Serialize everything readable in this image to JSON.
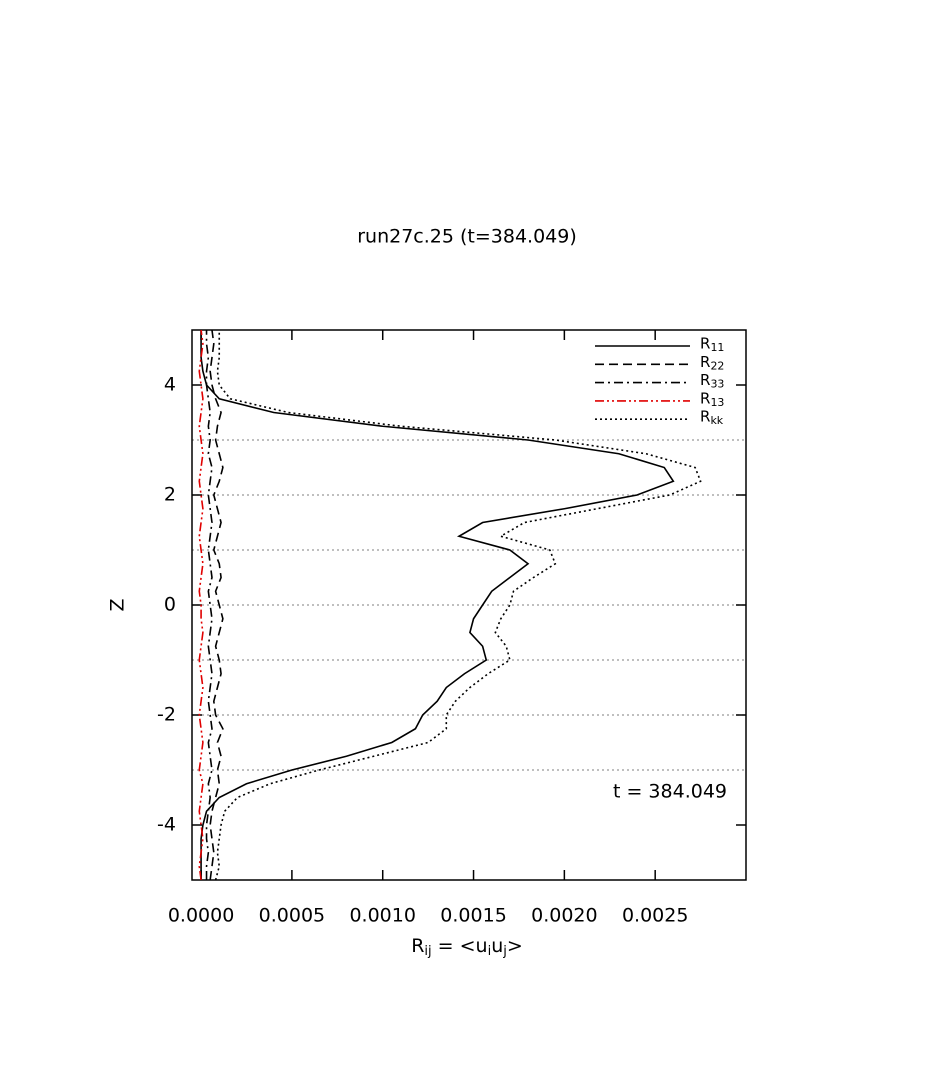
{
  "chart_data": {
    "type": "profile",
    "title": "run27c.25 (t=384.049)",
    "xlabel": [
      {
        "text": "R"
      },
      {
        "sub": "ij"
      },
      {
        "text": " = <u"
      },
      {
        "sub": "i"
      },
      {
        "text": "u"
      },
      {
        "sub": "j"
      },
      {
        "text": ">"
      }
    ],
    "ylabel": "Z",
    "annotation": "t = 384.049",
    "xlim": [
      -5e-05,
      0.003
    ],
    "ylim": [
      -5,
      5
    ],
    "xticks": [
      {
        "value": 0,
        "label": "0.0000"
      },
      {
        "value": 0.0005,
        "label": "0.0005"
      },
      {
        "value": 0.001,
        "label": "0.0010"
      },
      {
        "value": 0.0015,
        "label": "0.0015"
      },
      {
        "value": 0.002,
        "label": "0.0020"
      },
      {
        "value": 0.0025,
        "label": "0.0025"
      }
    ],
    "yticks": [
      -4,
      -2,
      0,
      2,
      4
    ],
    "reference_lines": [
      -3,
      -2,
      -1,
      0,
      1,
      2,
      3
    ],
    "legend": "upper right",
    "y": [
      -5,
      -4.75,
      -4.5,
      -4.25,
      -4,
      -3.75,
      -3.5,
      -3.25,
      -3,
      -2.75,
      -2.5,
      -2.25,
      -2,
      -1.75,
      -1.5,
      -1.25,
      -1,
      -0.75,
      -0.5,
      -0.25,
      0,
      0.25,
      0.5,
      0.75,
      1,
      1.25,
      1.5,
      1.75,
      2,
      2.25,
      2.5,
      2.75,
      3,
      3.25,
      3.5,
      3.75,
      4,
      4.25,
      4.5,
      4.75,
      5
    ],
    "series": [
      {
        "name": "R11",
        "color": "#000000",
        "dash": "solid",
        "values": [
          0,
          0,
          0,
          0,
          1e-05,
          3e-05,
          0.0001,
          0.00025,
          0.0005,
          0.0008,
          0.00105,
          0.00118,
          0.00122,
          0.0013,
          0.00135,
          0.00145,
          0.00157,
          0.00155,
          0.00148,
          0.0015,
          0.00155,
          0.0016,
          0.0017,
          0.0018,
          0.0017,
          0.00142,
          0.00155,
          0.002,
          0.0024,
          0.0026,
          0.00255,
          0.0023,
          0.0018,
          0.001,
          0.0004,
          0.0001,
          3e-05,
          1e-05,
          0,
          0,
          0
        ]
      },
      {
        "name": "R22",
        "color": "#000000",
        "dash": "dashed",
        "values": [
          5e-05,
          6e-05,
          7e-05,
          6e-05,
          5e-05,
          6e-05,
          8e-05,
          0.0001,
          9e-05,
          0.00011,
          9e-05,
          0.00012,
          8e-05,
          7e-05,
          9e-05,
          0.00011,
          0.0001,
          8e-05,
          0.0001,
          0.00012,
          0.0001,
          8e-05,
          0.00011,
          0.0001,
          7e-05,
          9e-05,
          0.00011,
          9e-05,
          7e-05,
          0.0001,
          0.00012,
          0.0001,
          8e-05,
          9e-05,
          0.00011,
          8e-05,
          6e-05,
          5e-05,
          6e-05,
          7e-05,
          6e-05
        ]
      },
      {
        "name": "R33",
        "color": "#000000",
        "dash": "dashdot",
        "values": [
          3e-05,
          3e-05,
          4e-05,
          3e-05,
          3e-05,
          4e-05,
          5e-05,
          4e-05,
          6e-05,
          5e-05,
          4e-05,
          6e-05,
          5e-05,
          4e-05,
          5e-05,
          6e-05,
          5e-05,
          4e-05,
          5e-05,
          6e-05,
          5e-05,
          4e-05,
          6e-05,
          5e-05,
          4e-05,
          5e-05,
          6e-05,
          5e-05,
          4e-05,
          5e-05,
          6e-05,
          4e-05,
          5e-05,
          4e-05,
          5e-05,
          4e-05,
          3e-05,
          3e-05,
          4e-05,
          3e-05,
          3e-05
        ]
      },
      {
        "name": "R13",
        "color": "#e00000",
        "dash": "dashdotdot",
        "values": [
          0,
          -1e-05,
          0,
          1e-05,
          0,
          -1e-05,
          0,
          1e-05,
          -1e-05,
          0,
          1e-05,
          0,
          -1e-05,
          0,
          1e-05,
          0,
          -1e-05,
          0,
          1e-05,
          0,
          0,
          -1e-05,
          0,
          1e-05,
          0,
          -1e-05,
          0,
          1e-05,
          0,
          -1e-05,
          0,
          1e-05,
          0,
          -1e-05,
          0,
          1e-05,
          0,
          -1e-05,
          0,
          1e-05,
          0
        ]
      },
      {
        "name": "Rkk",
        "color": "#000000",
        "dash": "dotted",
        "values": [
          8e-05,
          0.0001,
          9e-05,
          0.0001,
          0.00011,
          0.00013,
          0.0002,
          0.00038,
          0.00065,
          0.00095,
          0.00125,
          0.00135,
          0.00135,
          0.0014,
          0.00148,
          0.00158,
          0.0017,
          0.00168,
          0.00162,
          0.00165,
          0.0017,
          0.00172,
          0.00183,
          0.00195,
          0.00192,
          0.00165,
          0.00178,
          0.00218,
          0.00258,
          0.00275,
          0.00272,
          0.00245,
          0.00195,
          0.0011,
          0.00048,
          0.00016,
          0.0001,
          9e-05,
          0.0001,
          0.0001,
          0.0001
        ]
      }
    ]
  }
}
